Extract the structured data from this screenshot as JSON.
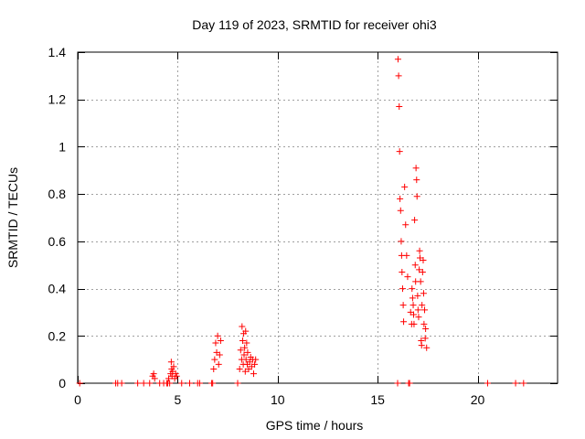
{
  "chart_data": {
    "type": "scatter",
    "title": "Day 119 of 2023, SRMTID for receiver ohi3",
    "xlabel": "GPS time / hours",
    "ylabel": "SRMTID / TECUs",
    "xlim": [
      0,
      24
    ],
    "ylim": [
      0,
      1.4
    ],
    "xticks": [
      0,
      5,
      10,
      15,
      20
    ],
    "yticks": [
      0,
      0.2,
      0.4,
      0.6,
      0.8,
      1,
      1.2,
      1.4
    ],
    "ytick_labels": [
      "0",
      "0.2",
      "0.4",
      "0.6",
      "0.8",
      "1",
      "1.2",
      "1.4"
    ],
    "grid": true,
    "marker": "+",
    "color": "#ff0000",
    "series": [
      {
        "name": "SRMTID",
        "x": [
          0.1,
          1.9,
          2.0,
          2.2,
          3.0,
          3.3,
          3.6,
          3.75,
          3.8,
          3.85,
          4.1,
          4.3,
          4.45,
          4.5,
          4.55,
          4.6,
          4.65,
          4.68,
          4.7,
          4.72,
          4.75,
          4.8,
          4.85,
          4.9,
          4.95,
          5.2,
          5.6,
          6.0,
          6.1,
          6.7,
          6.75,
          6.8,
          6.85,
          6.9,
          6.95,
          7.0,
          7.05,
          7.1,
          7.15,
          8.0,
          8.1,
          8.15,
          8.2,
          8.22,
          8.25,
          8.28,
          8.3,
          8.32,
          8.35,
          8.38,
          8.4,
          8.42,
          8.45,
          8.48,
          8.5,
          8.55,
          8.6,
          8.65,
          8.7,
          8.75,
          8.8,
          8.85,
          8.9,
          16.0,
          16.02,
          16.05,
          16.08,
          16.1,
          16.12,
          16.15,
          16.18,
          16.2,
          16.22,
          16.25,
          16.28,
          16.3,
          16.35,
          16.4,
          16.45,
          16.5,
          16.55,
          16.6,
          16.65,
          16.7,
          16.72,
          16.75,
          16.78,
          16.8,
          16.82,
          16.85,
          16.88,
          16.9,
          16.92,
          16.95,
          16.97,
          17.0,
          17.02,
          17.05,
          17.08,
          17.1,
          17.12,
          17.15,
          17.18,
          17.2,
          17.22,
          17.25,
          17.28,
          17.3,
          17.32,
          17.35,
          17.38,
          17.4,
          17.45,
          20.5,
          21.9,
          22.3
        ],
        "y": [
          0.0,
          0.0,
          0.0,
          0.0,
          0.0,
          0.0,
          0.0,
          0.03,
          0.04,
          0.02,
          0.0,
          0.0,
          0.0,
          0.0,
          0.02,
          0.0,
          0.04,
          0.09,
          0.06,
          0.03,
          0.05,
          0.07,
          0.02,
          0.04,
          0.03,
          0.0,
          0.0,
          0.0,
          0.0,
          0.0,
          0.0,
          0.06,
          0.1,
          0.17,
          0.13,
          0.2,
          0.08,
          0.12,
          0.18,
          0.0,
          0.06,
          0.14,
          0.1,
          0.24,
          0.18,
          0.08,
          0.21,
          0.12,
          0.15,
          0.05,
          0.22,
          0.1,
          0.17,
          0.08,
          0.13,
          0.06,
          0.09,
          0.11,
          0.07,
          0.1,
          0.04,
          0.08,
          0.1,
          0.0,
          1.37,
          1.3,
          1.17,
          0.98,
          0.78,
          0.73,
          0.6,
          0.54,
          0.47,
          0.4,
          0.33,
          0.26,
          0.83,
          0.67,
          0.54,
          0.45,
          0.0,
          0.0,
          0.3,
          0.25,
          0.4,
          0.36,
          0.33,
          0.29,
          0.25,
          0.69,
          0.5,
          0.43,
          0.91,
          0.86,
          0.79,
          0.37,
          0.31,
          0.28,
          0.48,
          0.56,
          0.53,
          0.43,
          0.18,
          0.16,
          0.33,
          0.47,
          0.52,
          0.38,
          0.25,
          0.31,
          0.19,
          0.23,
          0.15,
          0.0,
          0.0,
          0.0
        ]
      }
    ]
  }
}
